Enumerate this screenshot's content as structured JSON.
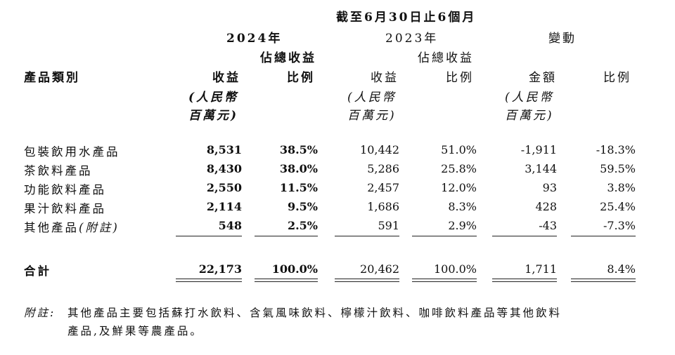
{
  "header": {
    "period": "截至6月30日止6個月",
    "year_2024": "2024年",
    "year_2023": "2023年",
    "change": "變動",
    "category": "產品類別",
    "revenue": "收益",
    "pct_line1": "佔總收益",
    "pct_line2": "比例",
    "amount": "金額",
    "ratio": "比例",
    "unit_line1": "(人民幣",
    "unit_line2": "百萬元)"
  },
  "rows": [
    {
      "name": "包裝飲用水產品",
      "rev2024": "8,531",
      "pct2024": "38.5%",
      "rev2023": "10,442",
      "pct2023": "51.0%",
      "chg_amt": "-1,911",
      "chg_pct": "-18.3%"
    },
    {
      "name": "茶飲料產品",
      "rev2024": "8,430",
      "pct2024": "38.0%",
      "rev2023": "5,286",
      "pct2023": "25.8%",
      "chg_amt": "3,144",
      "chg_pct": "59.5%"
    },
    {
      "name": "功能飲料產品",
      "rev2024": "2,550",
      "pct2024": "11.5%",
      "rev2023": "2,457",
      "pct2023": "12.0%",
      "chg_amt": "93",
      "chg_pct": "3.8%"
    },
    {
      "name": "果汁飲料產品",
      "rev2024": "2,114",
      "pct2024": "9.5%",
      "rev2023": "1,686",
      "pct2023": "8.3%",
      "chg_amt": "428",
      "chg_pct": "25.4%"
    },
    {
      "name": "其他產品",
      "name_note": "(附註)",
      "rev2024": "548",
      "pct2024": "2.5%",
      "rev2023": "591",
      "pct2023": "2.9%",
      "chg_amt": "-43",
      "chg_pct": "-7.3%"
    }
  ],
  "total": {
    "name": "合計",
    "rev2024": "22,173",
    "pct2024": "100.0%",
    "rev2023": "20,462",
    "pct2023": "100.0%",
    "chg_amt": "1,711",
    "chg_pct": "8.4%"
  },
  "footnote": {
    "label": "附註:",
    "line1": "其他產品主要包括蘇打水飲料、含氣風味飲料、檸檬汁飲料、咖啡飲料產品等其他飲料",
    "line2": "產品,及鮮果等農產品。"
  }
}
